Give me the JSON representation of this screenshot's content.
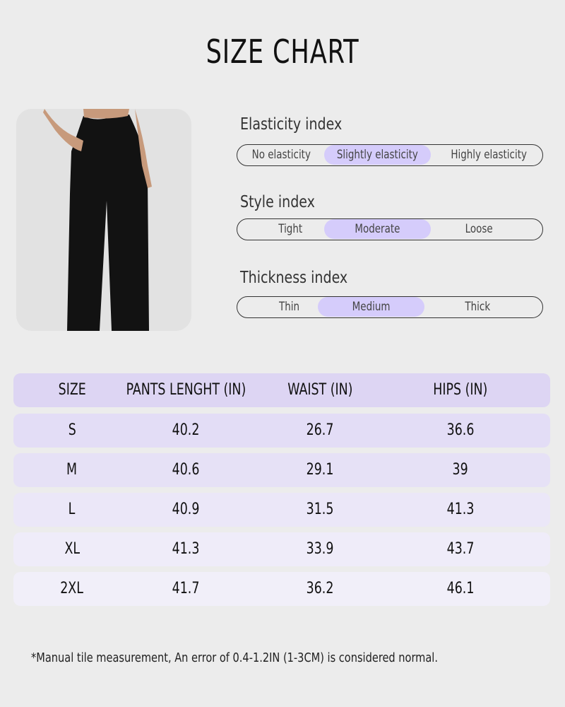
{
  "title": "SIZE CHART",
  "indices": [
    {
      "label": "Elasticity index",
      "options": [
        "No elasticity",
        "Slightly elasticity",
        "Highly elasticity"
      ],
      "selected": 1
    },
    {
      "label": "Style index",
      "options": [
        "Tight",
        "Moderate",
        "Loose"
      ],
      "selected": 1
    },
    {
      "label": "Thickness index",
      "options": [
        "Thin",
        "Medium",
        "Thick"
      ],
      "selected": 1
    }
  ],
  "table": {
    "headers": [
      "SIZE",
      "PANTS LENGHT (IN)",
      "WAIST (IN)",
      "HIPS (IN)"
    ],
    "rows": [
      [
        "S",
        "40.2",
        "26.7",
        "36.6"
      ],
      [
        "M",
        "40.6",
        "29.1",
        "39"
      ],
      [
        "L",
        "40.9",
        "31.5",
        "41.3"
      ],
      [
        "XL",
        "41.3",
        "33.9",
        "43.7"
      ],
      [
        "2XL",
        "41.7",
        "36.2",
        "46.1"
      ]
    ]
  },
  "colors": {
    "highlight": "#d5ccfb",
    "header": "#ddd5f3",
    "background": "#ececec"
  },
  "note": "*Manual tile measurement, An error of 0.4-1.2IN (1-3CM) is considered normal."
}
